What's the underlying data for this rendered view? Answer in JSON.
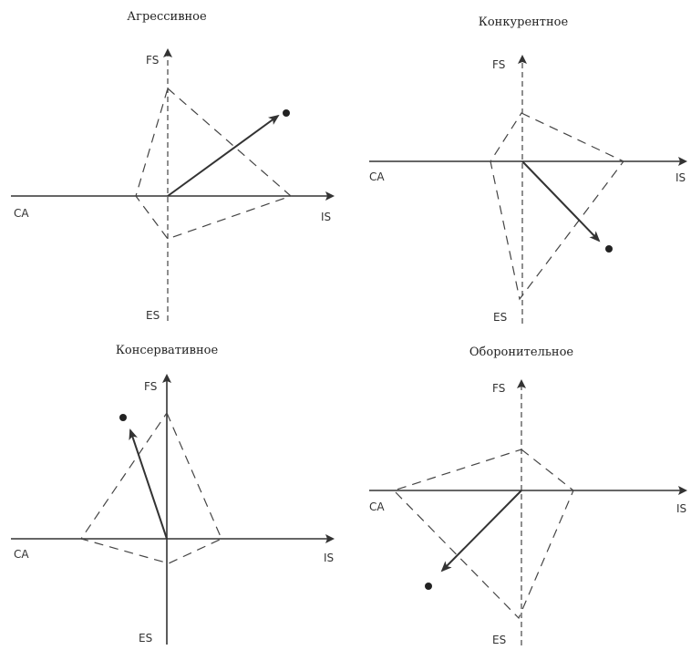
{
  "diagrams": [
    {
      "title": "Агрессивное",
      "labels": {
        "fs": "FS",
        "es": "ES",
        "ca": "CA",
        "is": "IS"
      }
    },
    {
      "title": "Конкурентное",
      "labels": {
        "fs": "FS",
        "es": "ES",
        "ca": "CA",
        "is": "IS"
      }
    },
    {
      "title": "Консервативное",
      "labels": {
        "fs": "FS",
        "es": "ES",
        "ca": "CA",
        "is": "IS"
      }
    },
    {
      "title": "Оборонительное",
      "labels": {
        "fs": "FS",
        "es": "ES",
        "ca": "CA",
        "is": "IS"
      }
    }
  ]
}
